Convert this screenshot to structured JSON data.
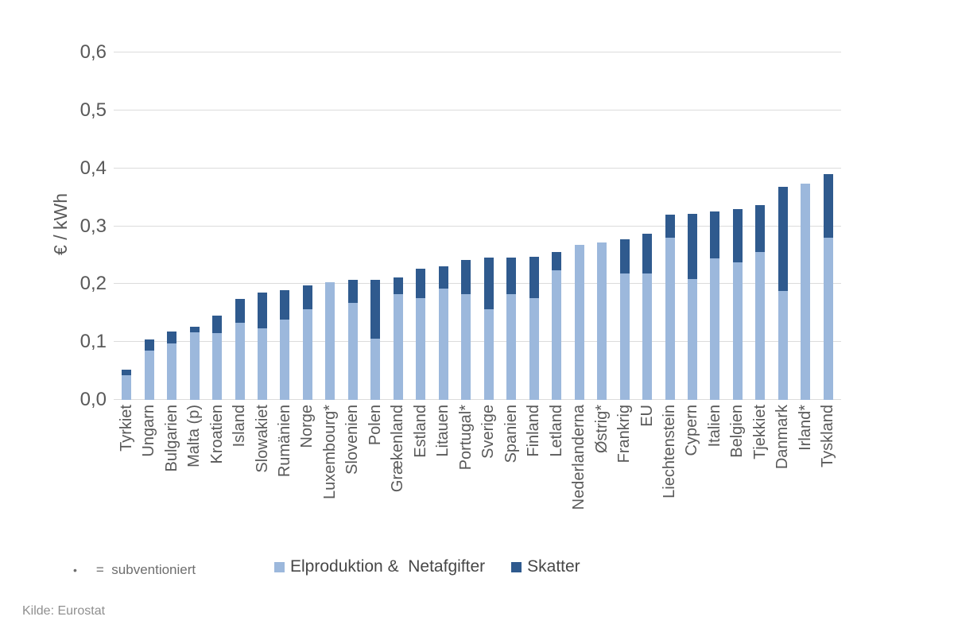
{
  "source": "Kilde: Eurostat",
  "footnote": {
    "bullet": "•",
    "text": "=  subventioniert"
  },
  "colors": {
    "gridline": "#dcdcdc",
    "axis_text": "#595959",
    "legend_text": "#474747",
    "source_text": "#8f8f8f"
  },
  "chart_data": {
    "type": "bar",
    "stacked": true,
    "title": "",
    "ylabel": "€ / kWh",
    "ylim": [
      0,
      0.6
    ],
    "ytick_values": [
      0,
      0.1,
      0.2,
      0.3,
      0.4,
      0.5,
      0.6
    ],
    "ytick_labels": [
      "0,0",
      "0,1",
      "0,2",
      "0,3",
      "0,4",
      "0,5",
      "0,6"
    ],
    "grid": true,
    "legend_position": "bottom",
    "categories": [
      "Tyrkiet",
      "Ungarn",
      "Bulgarien",
      "Malta (p)",
      "Kroatien",
      "Island",
      "Slowakiet",
      "Rumänien",
      "Norge",
      "Luxembourg*",
      "Slovenien",
      "Polen",
      "Grækenland",
      "Estland",
      "Litauen",
      "Portugal*",
      "Sverige",
      "Spanien",
      "Finland",
      "Letland",
      "Nederlanderna",
      "Østrig*",
      "Frankrig",
      "EU",
      "Liechtenstein",
      "Cypern",
      "Italien",
      "Belgien",
      "Tjekkiet",
      "Danmark",
      "Irland*",
      "Tyskland"
    ],
    "series": [
      {
        "name": "Elproduktion &  Netafgifter",
        "color": "#9cb8dc",
        "values": [
          0.043,
          0.085,
          0.098,
          0.117,
          0.116,
          0.133,
          0.124,
          0.138,
          0.157,
          0.203,
          0.168,
          0.106,
          0.182,
          0.176,
          0.192,
          0.182,
          0.156,
          0.183,
          0.176,
          0.224,
          0.268,
          0.272,
          0.218,
          0.218,
          0.28,
          0.209,
          0.244,
          0.238,
          0.256,
          0.188,
          0.373,
          0.28
        ]
      },
      {
        "name": "Skatter",
        "color": "#2f5a8e",
        "values": [
          0.009,
          0.02,
          0.02,
          0.01,
          0.03,
          0.042,
          0.062,
          0.052,
          0.041,
          0.0,
          0.04,
          0.102,
          0.03,
          0.05,
          0.039,
          0.06,
          0.09,
          0.063,
          0.071,
          0.031,
          0.0,
          0.0,
          0.06,
          0.069,
          0.04,
          0.112,
          0.081,
          0.092,
          0.081,
          0.18,
          0.0,
          0.11
        ]
      }
    ]
  }
}
